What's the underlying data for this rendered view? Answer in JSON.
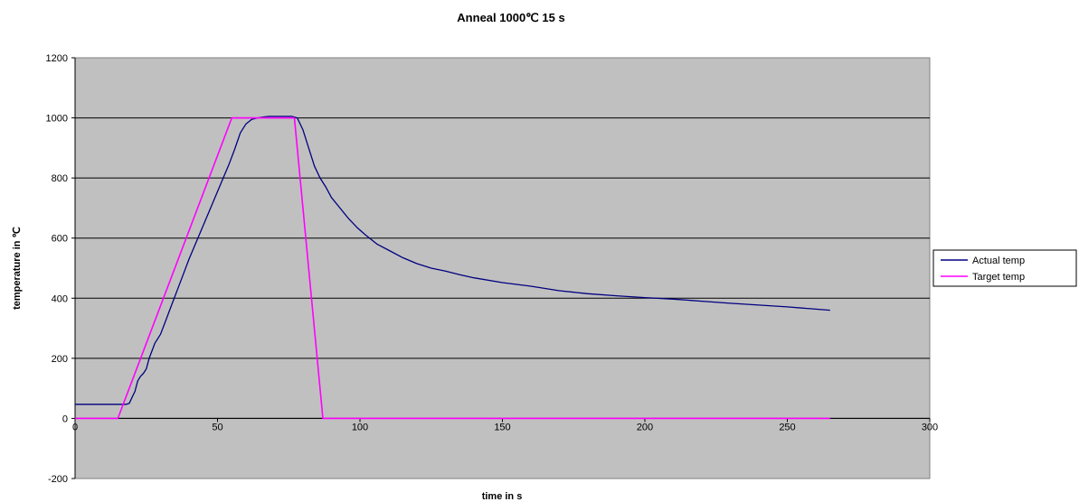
{
  "chart_data": {
    "type": "line",
    "title": "Anneal 1000℃ 15 s",
    "xlabel": "time in s",
    "ylabel": "temperature in ℃",
    "xlim": [
      0,
      300
    ],
    "ylim": [
      -200,
      1200
    ],
    "x_ticks": [
      0,
      50,
      100,
      150,
      200,
      250,
      300
    ],
    "y_ticks": [
      -200,
      0,
      200,
      400,
      600,
      800,
      1000,
      1200
    ],
    "grid": "horizontal",
    "plot_background": "#c0c0c0",
    "legend": "right",
    "series": [
      {
        "name": "Actual temp",
        "color": "#000080",
        "points": [
          [
            0,
            47
          ],
          [
            18,
            47
          ],
          [
            19,
            50
          ],
          [
            20,
            70
          ],
          [
            21,
            90
          ],
          [
            22,
            125
          ],
          [
            23,
            140
          ],
          [
            24,
            150
          ],
          [
            25,
            165
          ],
          [
            26,
            200
          ],
          [
            27,
            225
          ],
          [
            28,
            250
          ],
          [
            30,
            280
          ],
          [
            32,
            330
          ],
          [
            34,
            380
          ],
          [
            36,
            430
          ],
          [
            38,
            480
          ],
          [
            40,
            530
          ],
          [
            42,
            575
          ],
          [
            44,
            620
          ],
          [
            46,
            665
          ],
          [
            48,
            710
          ],
          [
            50,
            755
          ],
          [
            52,
            800
          ],
          [
            54,
            845
          ],
          [
            56,
            895
          ],
          [
            58,
            950
          ],
          [
            60,
            980
          ],
          [
            62,
            995
          ],
          [
            64,
            1000
          ],
          [
            66,
            1003
          ],
          [
            68,
            1005
          ],
          [
            70,
            1005
          ],
          [
            72,
            1005
          ],
          [
            74,
            1005
          ],
          [
            76,
            1005
          ],
          [
            78,
            1000
          ],
          [
            80,
            960
          ],
          [
            82,
            900
          ],
          [
            84,
            840
          ],
          [
            86,
            800
          ],
          [
            88,
            770
          ],
          [
            90,
            735
          ],
          [
            93,
            700
          ],
          [
            96,
            665
          ],
          [
            99,
            635
          ],
          [
            102,
            610
          ],
          [
            106,
            580
          ],
          [
            110,
            560
          ],
          [
            115,
            535
          ],
          [
            120,
            515
          ],
          [
            125,
            500
          ],
          [
            130,
            490
          ],
          [
            135,
            478
          ],
          [
            140,
            468
          ],
          [
            150,
            452
          ],
          [
            160,
            440
          ],
          [
            170,
            425
          ],
          [
            180,
            415
          ],
          [
            190,
            408
          ],
          [
            200,
            402
          ],
          [
            210,
            397
          ],
          [
            220,
            390
          ],
          [
            230,
            383
          ],
          [
            240,
            377
          ],
          [
            250,
            371
          ],
          [
            258,
            365
          ],
          [
            265,
            360
          ]
        ]
      },
      {
        "name": "Target temp",
        "color": "#ff00ff",
        "points": [
          [
            0,
            0
          ],
          [
            15,
            0
          ],
          [
            55,
            1000
          ],
          [
            77,
            1000
          ],
          [
            87,
            0
          ],
          [
            265,
            0
          ]
        ]
      }
    ]
  }
}
